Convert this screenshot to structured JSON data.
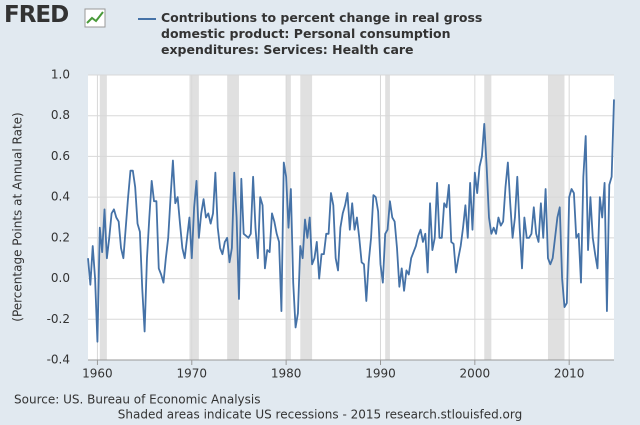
{
  "chart_data": {
    "type": "line",
    "logo": "FRED",
    "ylabel": "(Percentage Points at Annual Rate)",
    "source": "Source: US. Bureau of Economic Analysis",
    "note": "Shaded areas indicate US recessions - 2015 research.stlouisfed.org",
    "xlim": [
      1959,
      2014.75
    ],
    "xticks": [
      1960,
      1970,
      1980,
      1990,
      2000,
      2010
    ],
    "ylim": [
      -0.4,
      1.0
    ],
    "yticks": [
      -0.4,
      -0.2,
      {
        "value": 0,
        "label": "0.0"
      },
      0.2,
      0.4,
      0.6,
      0.8,
      {
        "value": 1,
        "label": "1.0"
      }
    ],
    "grid": true,
    "recessions": [
      [
        1960.25,
        1961.0
      ],
      [
        1969.75,
        1970.75
      ],
      [
        1973.75,
        1975.0
      ],
      [
        1980.0,
        1980.5
      ],
      [
        1981.5,
        1982.75
      ],
      [
        1990.5,
        1991.0
      ],
      [
        2001.0,
        2001.75
      ],
      [
        2007.75,
        2009.5
      ]
    ],
    "x": [
      1959,
      1959.25,
      1959.5,
      1959.75,
      1960,
      1960.25,
      1960.5,
      1960.75,
      1961,
      1961.25,
      1961.5,
      1961.75,
      1962,
      1962.25,
      1962.5,
      1962.75,
      1963,
      1963.25,
      1963.5,
      1963.75,
      1964,
      1964.25,
      1964.5,
      1964.75,
      1965,
      1965.25,
      1965.5,
      1965.75,
      1966,
      1966.25,
      1966.5,
      1966.75,
      1967,
      1967.25,
      1967.5,
      1967.75,
      1968,
      1968.25,
      1968.5,
      1968.75,
      1969,
      1969.25,
      1969.5,
      1969.75,
      1970,
      1970.25,
      1970.5,
      1970.75,
      1971,
      1971.25,
      1971.5,
      1971.75,
      1972,
      1972.25,
      1972.5,
      1972.75,
      1973,
      1973.25,
      1973.5,
      1973.75,
      1974,
      1974.25,
      1974.5,
      1974.75,
      1975,
      1975.25,
      1975.5,
      1975.75,
      1976,
      1976.25,
      1976.5,
      1976.75,
      1977,
      1977.25,
      1977.5,
      1977.75,
      1978,
      1978.25,
      1978.5,
      1978.75,
      1979,
      1979.25,
      1979.5,
      1979.75,
      1980,
      1980.25,
      1980.5,
      1980.75,
      1981,
      1981.25,
      1981.5,
      1981.75,
      1982,
      1982.25,
      1982.5,
      1982.75,
      1983,
      1983.25,
      1983.5,
      1983.75,
      1984,
      1984.25,
      1984.5,
      1984.75,
      1985,
      1985.25,
      1985.5,
      1985.75,
      1986,
      1986.25,
      1986.5,
      1986.75,
      1987,
      1987.25,
      1987.5,
      1987.75,
      1988,
      1988.25,
      1988.5,
      1988.75,
      1989,
      1989.25,
      1989.5,
      1989.75,
      1990,
      1990.25,
      1990.5,
      1990.75,
      1991,
      1991.25,
      1991.5,
      1991.75,
      1992,
      1992.25,
      1992.5,
      1992.75,
      1993,
      1993.25,
      1993.5,
      1993.75,
      1994,
      1994.25,
      1994.5,
      1994.75,
      1995,
      1995.25,
      1995.5,
      1995.75,
      1996,
      1996.25,
      1996.5,
      1996.75,
      1997,
      1997.25,
      1997.5,
      1997.75,
      1998,
      1998.25,
      1998.5,
      1998.75,
      1999,
      1999.25,
      1999.5,
      1999.75,
      2000,
      2000.25,
      2000.5,
      2000.75,
      2001,
      2001.25,
      2001.5,
      2001.75,
      2002,
      2002.25,
      2002.5,
      2002.75,
      2003,
      2003.25,
      2003.5,
      2003.75,
      2004,
      2004.25,
      2004.5,
      2004.75,
      2005,
      2005.25,
      2005.5,
      2005.75,
      2006,
      2006.25,
      2006.5,
      2006.75,
      2007,
      2007.25,
      2007.5,
      2007.75,
      2008,
      2008.25,
      2008.5,
      2008.75,
      2009,
      2009.25,
      2009.5,
      2009.75,
      2010,
      2010.25,
      2010.5,
      2010.75,
      2011,
      2011.25,
      2011.5,
      2011.75,
      2012,
      2012.25,
      2012.5,
      2012.75,
      2013,
      2013.25,
      2013.5,
      2013.75,
      2014,
      2014.25,
      2014.5,
      2014.75
    ],
    "series": [
      {
        "name": "Contributions to percent change in real gross domestic product: Personal consumption expenditures: Services: Health care",
        "color": "#4572a7",
        "values": [
          0.1,
          -0.03,
          0.16,
          0.0,
          -0.31,
          0.25,
          0.13,
          0.34,
          0.1,
          0.2,
          0.32,
          0.34,
          0.3,
          0.28,
          0.15,
          0.1,
          0.25,
          0.4,
          0.53,
          0.53,
          0.45,
          0.27,
          0.23,
          -0.05,
          -0.26,
          0.1,
          0.3,
          0.48,
          0.38,
          0.38,
          0.05,
          0.02,
          -0.02,
          0.1,
          0.2,
          0.4,
          0.58,
          0.37,
          0.4,
          0.27,
          0.15,
          0.1,
          0.2,
          0.3,
          0.1,
          0.35,
          0.48,
          0.2,
          0.32,
          0.39,
          0.3,
          0.32,
          0.27,
          0.32,
          0.52,
          0.25,
          0.15,
          0.12,
          0.18,
          0.2,
          0.08,
          0.15,
          0.52,
          0.3,
          -0.1,
          0.49,
          0.22,
          0.21,
          0.2,
          0.22,
          0.5,
          0.25,
          0.1,
          0.4,
          0.36,
          0.05,
          0.14,
          0.13,
          0.32,
          0.28,
          0.22,
          0.18,
          -0.16,
          0.57,
          0.5,
          0.25,
          0.44,
          -0.02,
          -0.24,
          -0.17,
          0.16,
          0.1,
          0.29,
          0.2,
          0.3,
          0.07,
          0.1,
          0.18,
          0.0,
          0.12,
          0.12,
          0.22,
          0.22,
          0.42,
          0.36,
          0.1,
          0.04,
          0.25,
          0.32,
          0.36,
          0.42,
          0.24,
          0.37,
          0.24,
          0.3,
          0.2,
          0.08,
          0.07,
          -0.11,
          0.08,
          0.2,
          0.41,
          0.4,
          0.33,
          0.07,
          -0.02,
          0.22,
          0.24,
          0.38,
          0.3,
          0.28,
          0.15,
          -0.04,
          0.05,
          -0.06,
          0.04,
          0.02,
          0.1,
          0.13,
          0.16,
          0.21,
          0.24,
          0.18,
          0.22,
          0.03,
          0.37,
          0.14,
          0.2,
          0.47,
          0.2,
          0.2,
          0.37,
          0.35,
          0.46,
          0.18,
          0.17,
          0.03,
          0.1,
          0.16,
          0.25,
          0.36,
          0.2,
          0.47,
          0.24,
          0.52,
          0.42,
          0.55,
          0.6,
          0.76,
          0.55,
          0.3,
          0.22,
          0.25,
          0.22,
          0.3,
          0.26,
          0.28,
          0.45,
          0.57,
          0.37,
          0.2,
          0.3,
          0.5,
          0.25,
          0.05,
          0.3,
          0.2,
          0.2,
          0.22,
          0.35,
          0.22,
          0.18,
          0.37,
          0.2,
          0.44,
          0.1,
          0.07,
          0.1,
          0.2,
          0.3,
          0.35,
          0.0,
          -0.14,
          -0.12,
          0.4,
          0.44,
          0.42,
          0.2,
          0.22,
          -0.02,
          0.5,
          0.7,
          0.14,
          0.4,
          0.2,
          0.12,
          0.05,
          0.4,
          0.3,
          0.47,
          -0.16,
          0.46,
          0.5,
          0.88
        ]
      }
    ]
  }
}
